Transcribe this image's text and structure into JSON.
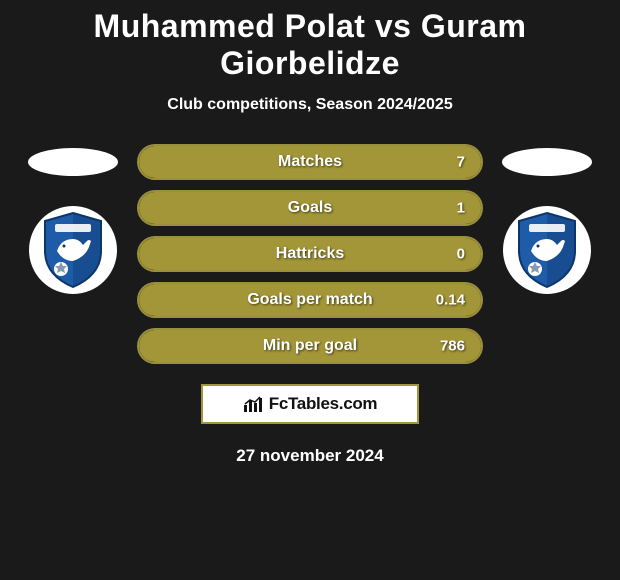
{
  "title": "Muhammed Polat vs Guram Giorbelidze",
  "subtitle": "Club competitions, Season 2024/2025",
  "date": "27 november 2024",
  "brand": "FcTables.com",
  "colors": {
    "bar_fill": "#a39638",
    "bar_border": "#9a8f3a",
    "background": "#1a1a1a",
    "badge_primary": "#1e5ba8",
    "badge_dark": "#0d3668"
  },
  "stats": [
    {
      "label": "Matches",
      "value": "7",
      "fill_pct": 100
    },
    {
      "label": "Goals",
      "value": "1",
      "fill_pct": 100
    },
    {
      "label": "Hattricks",
      "value": "0",
      "fill_pct": 100
    },
    {
      "label": "Goals per match",
      "value": "0.14",
      "fill_pct": 100
    },
    {
      "label": "Min per goal",
      "value": "786",
      "fill_pct": 100
    }
  ]
}
